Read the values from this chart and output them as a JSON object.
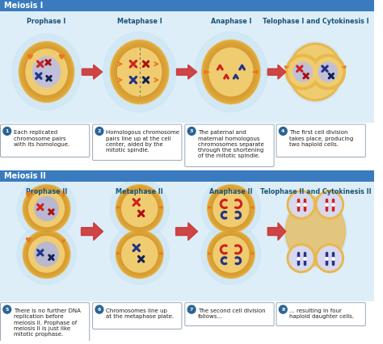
{
  "title1": "Meiosis I",
  "title2": "Meiosis II",
  "title_bg": "#3a7bbf",
  "title_color": "#ffffff",
  "header_color": "#1a5276",
  "stages_meiosis1": [
    "Prophase I",
    "Metaphase I",
    "Anaphase I",
    "Telophase I and Cytokinesis I"
  ],
  "stages_meiosis2": [
    "Prophase II",
    "Metaphase II",
    "Anaphase II",
    "Telophase II and Cytokinesis II"
  ],
  "descriptions1": [
    "Each replicated\nchromosome pairs\nwith its homologue.",
    "Homologous chromosome\npairs line up at the cell\ncenter, aided by the\nmitotic spindle.",
    "The paternal and\nmaternal homologous\nchromosomes separate\nthrough the shortening\nof the mitotic spindle.",
    "The first cell division\ntakes place, producing\ntwo haploid cells."
  ],
  "descriptions2": [
    "There is no further DNA\nreplication before\nmeiosis II. Prophase of\nmeiosis II is just like\nmitotic prophase.",
    "Chromosomes line up\nat the metaphase plate.",
    "The second cell division\nfollows...",
    "... resulting in four\nhaploid daughter cells."
  ],
  "desc_nums1": [
    "1",
    "2",
    "3",
    "4"
  ],
  "desc_nums2": [
    "5",
    "6",
    "7",
    "8"
  ],
  "arrow_color": "#cc3333",
  "cell_outer_color": "#e8b84b",
  "cell_rim_color": "#d4952a",
  "cell_inner_color": "#f0cc70",
  "nucleus_color": "#c8c8e8",
  "bg_color": "#ffffff",
  "cell_bg_strip": "#ddeef8",
  "num_circle_color": "#2a6496",
  "desc_border_color": "#8899aa",
  "chrom_red": "#cc2222",
  "chrom_blue": "#223388",
  "chrom_darkred": "#881111",
  "chrom_darkblue": "#112266",
  "orange_indicator": "#e87820"
}
